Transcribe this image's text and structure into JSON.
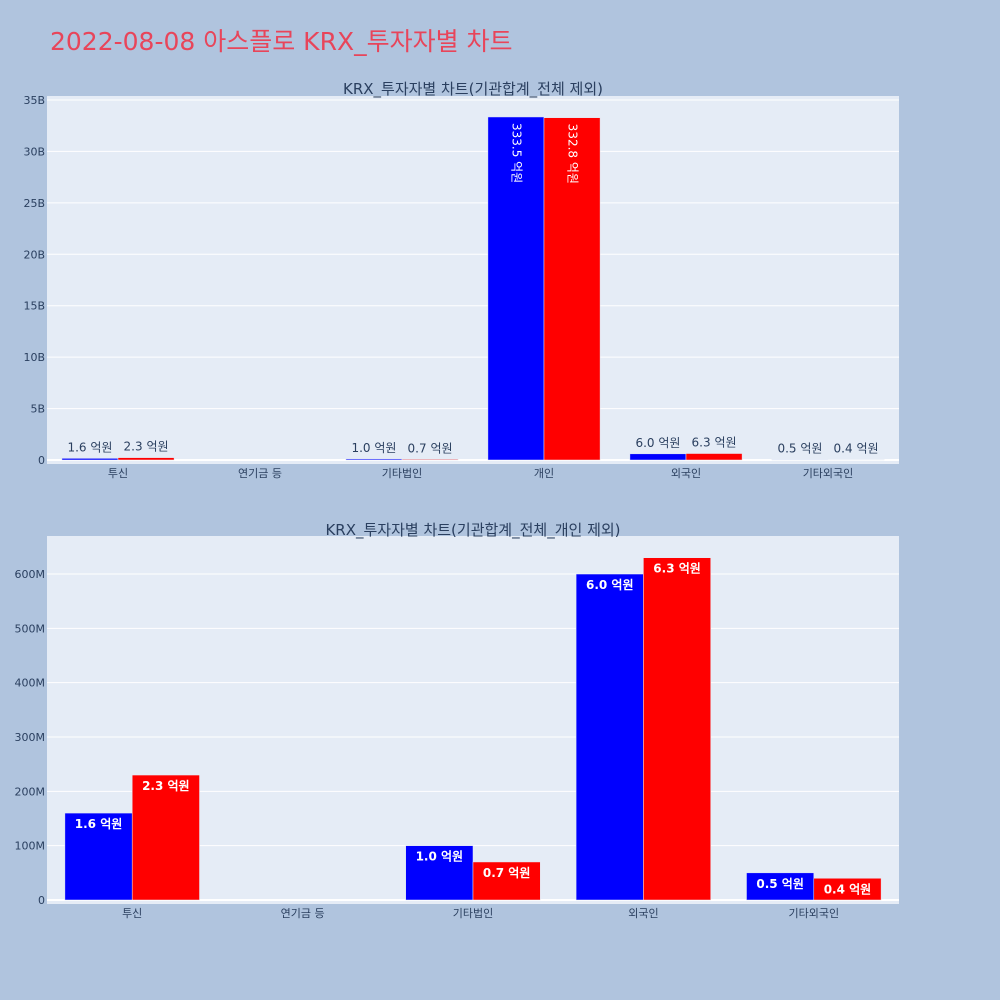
{
  "title": "2022-08-08 아스플로 KRX_투자자별 차트",
  "colors": {
    "series1": "#0000ff",
    "series2": "#ff0000",
    "plot_bg": "#e5ecf6",
    "page_bg": "#b0c4de",
    "title": "#e8455a"
  },
  "chart_data": [
    {
      "type": "bar",
      "title": "KRX_투자자별 차트(기관합계_전체 제외)",
      "categories": [
        "투신",
        "연기금 등",
        "기타법인",
        "개인",
        "외국인",
        "기타외국인"
      ],
      "series": [
        {
          "values": [
            160000000,
            0,
            100000000,
            33350000000,
            600000000,
            50000000
          ],
          "labels": [
            "1.6 억원",
            "",
            "1.0 억원",
            "333.5 억원",
            "6.0 억원",
            "0.5 억원"
          ]
        },
        {
          "values": [
            230000000,
            0,
            70000000,
            33280000000,
            630000000,
            40000000
          ],
          "labels": [
            "2.3 억원",
            "",
            "0.7 억원",
            "332.8 억원",
            "6.3 억원",
            "0.4 억원"
          ]
        }
      ],
      "ylim": [
        0,
        35000000000
      ],
      "yticks": [
        0,
        5000000000,
        10000000000,
        15000000000,
        20000000000,
        25000000000,
        30000000000,
        35000000000
      ],
      "ytick_labels": [
        "0",
        "5B",
        "10B",
        "15B",
        "20B",
        "25B",
        "30B",
        "35B"
      ],
      "grid": true,
      "legend": "none"
    },
    {
      "type": "bar",
      "title": "KRX_투자자별 차트(기관합계_전체_개인 제외)",
      "categories": [
        "투신",
        "연기금 등",
        "기타법인",
        "외국인",
        "기타외국인"
      ],
      "series": [
        {
          "values": [
            160000000,
            0,
            100000000,
            600000000,
            50000000
          ],
          "labels": [
            "1.6 억원",
            "",
            "1.0 억원",
            "6.0 억원",
            "0.5 억원"
          ]
        },
        {
          "values": [
            230000000,
            0,
            70000000,
            630000000,
            40000000
          ],
          "labels": [
            "2.3 억원",
            "",
            "0.7 억원",
            "6.3 억원",
            "0.4 억원"
          ]
        }
      ],
      "ylim": [
        0,
        670000000
      ],
      "yticks": [
        0,
        100000000,
        200000000,
        300000000,
        400000000,
        500000000,
        600000000
      ],
      "ytick_labels": [
        "0",
        "100M",
        "200M",
        "300M",
        "400M",
        "500M",
        "600M"
      ],
      "grid": true,
      "legend": "none"
    }
  ]
}
